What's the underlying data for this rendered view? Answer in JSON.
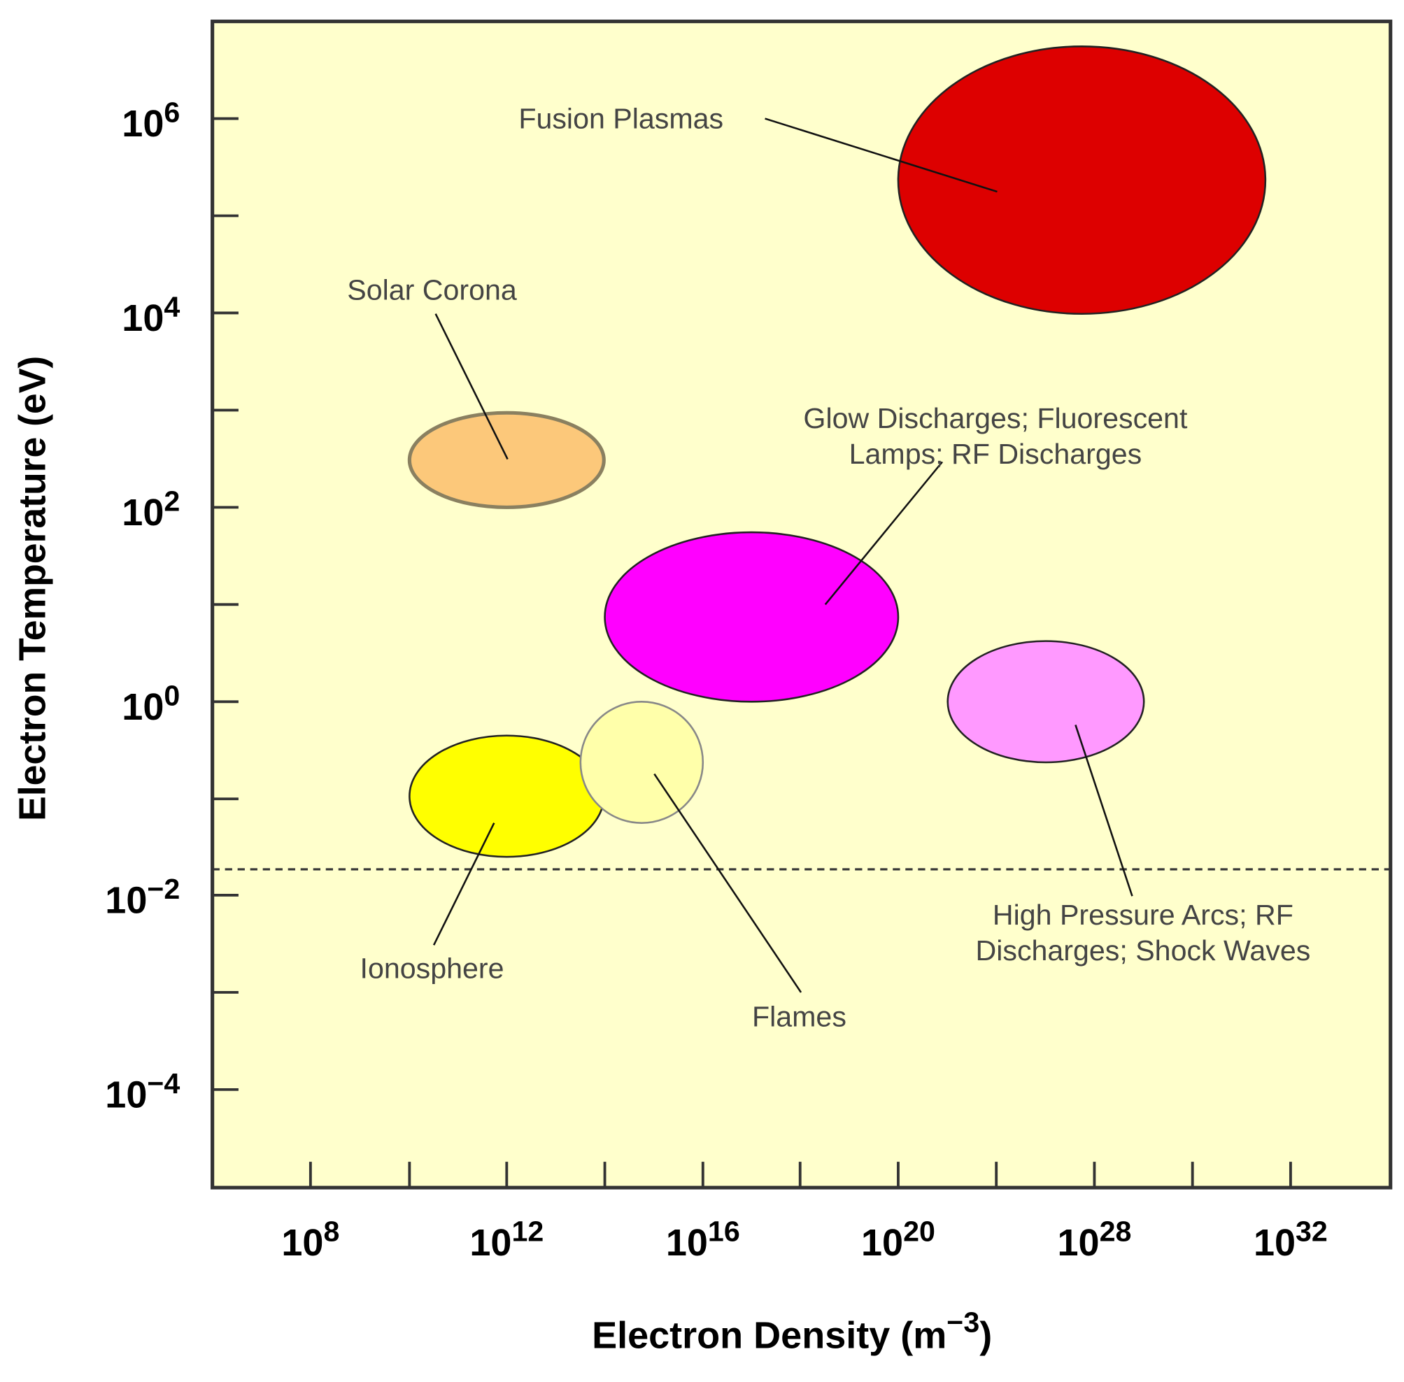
{
  "y_axis": {
    "title": "Electron Temperature (eV)",
    "ticks": [
      {
        "base": "10",
        "exp": "6"
      },
      {
        "base": "10",
        "exp": "4"
      },
      {
        "base": "10",
        "exp": "2"
      },
      {
        "base": "10",
        "exp": "0"
      },
      {
        "base": "10",
        "exp": "−2"
      },
      {
        "base": "10",
        "exp": "−4"
      }
    ]
  },
  "x_axis": {
    "title": {
      "prefix": "Electron Density (m",
      "exp": "−3",
      "suffix": ")"
    },
    "ticks": [
      {
        "base": "10",
        "exp": "8"
      },
      {
        "base": "10",
        "exp": "12"
      },
      {
        "base": "10",
        "exp": "16"
      },
      {
        "base": "10",
        "exp": "20"
      },
      {
        "base": "10",
        "exp": "28"
      },
      {
        "base": "10",
        "exp": "32"
      }
    ]
  },
  "regions": [
    {
      "label": [
        "Fusion Plasmas"
      ]
    },
    {
      "label": [
        "Solar Corona"
      ]
    },
    {
      "label": [
        "Glow Discharges; Fluorescent",
        "Lamps; RF Discharges"
      ]
    },
    {
      "label": [
        "High Pressure Arcs; RF",
        "Discharges; Shock Waves"
      ]
    },
    {
      "label": [
        "Ionosphere"
      ]
    },
    {
      "label": [
        "Flames"
      ]
    }
  ]
}
